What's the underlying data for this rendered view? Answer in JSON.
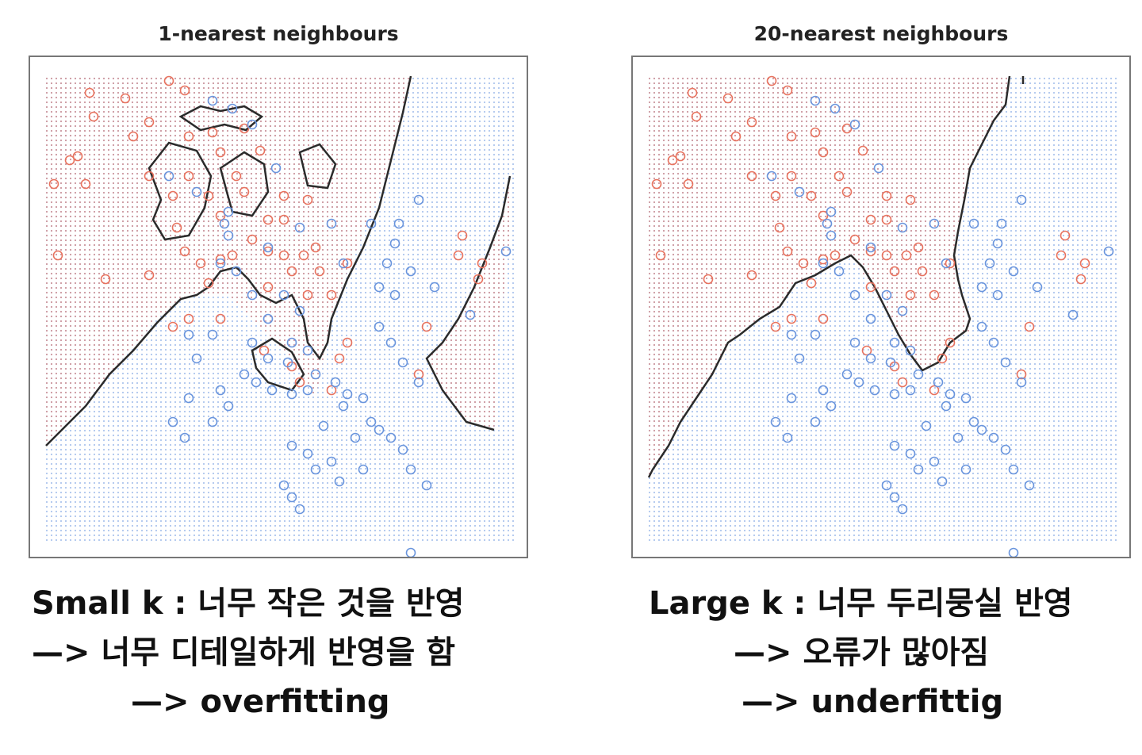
{
  "panels": [
    {
      "title": "1-nearest neighbours",
      "caption": [
        "Small k : 너무 작은 것을 반영",
        "—> 너무 디테일하게 반영을 함",
        "—> overfitting"
      ]
    },
    {
      "title": "20-nearest neighbours",
      "caption": [
        "Large k : 너무 두리뭉실 반영",
        "—> 오류가 많아짐",
        "—> underfittig"
      ]
    }
  ],
  "colors": {
    "class_a": "#e8735f",
    "class_b": "#6a95dd",
    "boundary": "#2b2b2b"
  }
}
